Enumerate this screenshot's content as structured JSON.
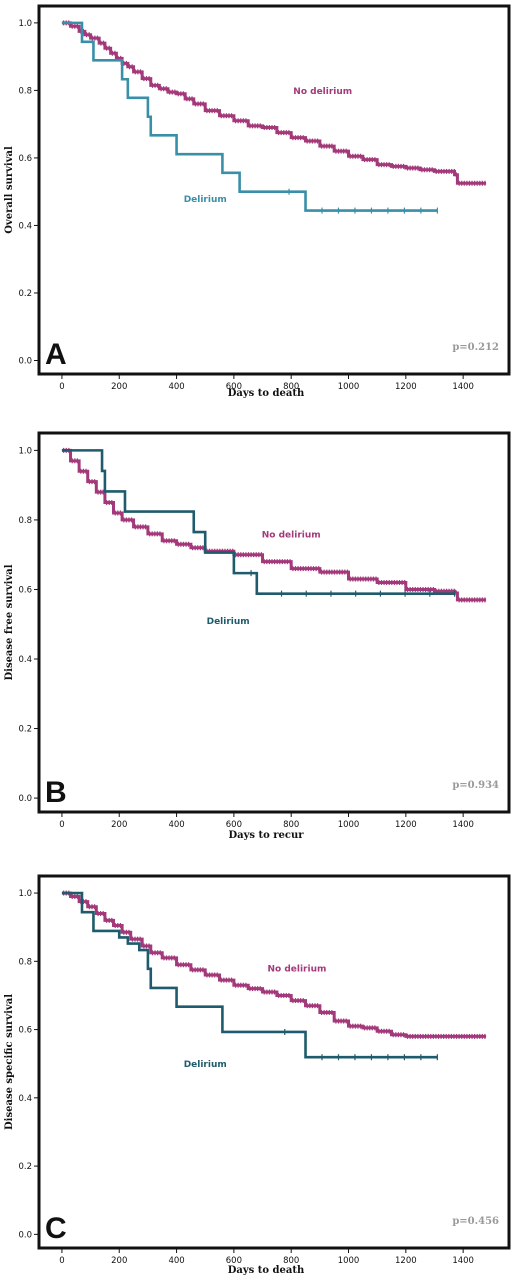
{
  "chart_data": [
    {
      "type": "line",
      "panel_label": "A",
      "xlabel": "Days to death",
      "ylabel": "Overall survival",
      "xlim": [
        -80,
        1560
      ],
      "ylim": [
        -0.04,
        1.05
      ],
      "xticks": [
        0,
        200,
        400,
        600,
        800,
        1000,
        1200,
        1400
      ],
      "yticks": [
        "0.0",
        "0.2",
        "0.4",
        "0.6",
        "0.8",
        "1.0"
      ],
      "p_value": "p=0.212",
      "series": [
        {
          "name": "No delirium",
          "color": "#a3397a",
          "x": [
            0,
            30,
            60,
            80,
            100,
            130,
            150,
            170,
            190,
            210,
            230,
            250,
            280,
            310,
            340,
            370,
            400,
            430,
            460,
            500,
            550,
            600,
            650,
            700,
            750,
            800,
            850,
            900,
            950,
            1000,
            1050,
            1100,
            1150,
            1200,
            1250,
            1300,
            1370,
            1380,
            1480
          ],
          "y": [
            1.0,
            0.99,
            0.975,
            0.965,
            0.955,
            0.94,
            0.925,
            0.91,
            0.895,
            0.88,
            0.87,
            0.855,
            0.835,
            0.815,
            0.805,
            0.795,
            0.79,
            0.775,
            0.76,
            0.74,
            0.725,
            0.71,
            0.695,
            0.69,
            0.675,
            0.66,
            0.65,
            0.635,
            0.62,
            0.605,
            0.595,
            0.58,
            0.575,
            0.57,
            0.565,
            0.56,
            0.55,
            0.525,
            0.525
          ],
          "label_at": [
            910,
            0.79
          ]
        },
        {
          "name": "Delirium",
          "color": "#3a8fa8",
          "x": [
            0,
            70,
            110,
            210,
            230,
            300,
            310,
            400,
            560,
            620,
            850,
            1310
          ],
          "y": [
            1.0,
            0.944,
            0.889,
            0.833,
            0.778,
            0.722,
            0.667,
            0.611,
            0.556,
            0.5,
            0.444,
            0.444
          ],
          "label_at": [
            500,
            0.47
          ]
        }
      ]
    },
    {
      "type": "line",
      "panel_label": "B",
      "xlabel": "Days to recur",
      "ylabel": "Disease free survival",
      "xlim": [
        -80,
        1560
      ],
      "ylim": [
        -0.04,
        1.05
      ],
      "xticks": [
        0,
        200,
        400,
        600,
        800,
        1000,
        1200,
        1400
      ],
      "yticks": [
        "0.0",
        "0.2",
        "0.4",
        "0.6",
        "0.8",
        "1.0"
      ],
      "p_value": "p=0.934",
      "series": [
        {
          "name": "No delirium",
          "color": "#a3397a",
          "x": [
            0,
            30,
            60,
            90,
            120,
            150,
            180,
            210,
            250,
            300,
            350,
            400,
            450,
            500,
            600,
            700,
            800,
            900,
            1000,
            1100,
            1200,
            1300,
            1370,
            1380,
            1480
          ],
          "y": [
            1.0,
            0.97,
            0.94,
            0.91,
            0.88,
            0.85,
            0.82,
            0.8,
            0.78,
            0.76,
            0.74,
            0.73,
            0.72,
            0.71,
            0.7,
            0.68,
            0.66,
            0.65,
            0.63,
            0.62,
            0.6,
            0.595,
            0.59,
            0.57,
            0.57
          ],
          "label_at": [
            800,
            0.75
          ]
        },
        {
          "name": "Delirium",
          "color": "#1f5b6c",
          "x": [
            0,
            140,
            150,
            220,
            460,
            500,
            600,
            680,
            1370
          ],
          "y": [
            1.0,
            0.941,
            0.882,
            0.824,
            0.765,
            0.706,
            0.647,
            0.588,
            0.588
          ],
          "label_at": [
            580,
            0.5
          ]
        }
      ]
    },
    {
      "type": "line",
      "panel_label": "C",
      "xlabel": "Days to death",
      "ylabel": "Disease specific survival",
      "xlim": [
        -80,
        1560
      ],
      "ylim": [
        -0.04,
        1.05
      ],
      "xticks": [
        0,
        200,
        400,
        600,
        800,
        1000,
        1200,
        1400
      ],
      "yticks": [
        "0.0",
        "0.2",
        "0.4",
        "0.6",
        "0.8",
        "1.0"
      ],
      "p_value": "p=0.456",
      "series": [
        {
          "name": "No delirium",
          "color": "#a3397a",
          "x": [
            0,
            30,
            60,
            90,
            120,
            150,
            180,
            210,
            240,
            280,
            310,
            350,
            400,
            450,
            500,
            550,
            600,
            650,
            700,
            750,
            800,
            850,
            900,
            950,
            1000,
            1050,
            1100,
            1150,
            1200,
            1480
          ],
          "y": [
            1.0,
            0.99,
            0.975,
            0.96,
            0.94,
            0.92,
            0.905,
            0.885,
            0.865,
            0.845,
            0.825,
            0.81,
            0.79,
            0.775,
            0.76,
            0.745,
            0.73,
            0.72,
            0.71,
            0.7,
            0.685,
            0.67,
            0.65,
            0.625,
            0.61,
            0.605,
            0.595,
            0.585,
            0.58,
            0.58
          ],
          "label_at": [
            820,
            0.77
          ]
        },
        {
          "name": "Delirium",
          "color": "#1f5b6c",
          "x": [
            0,
            70,
            110,
            200,
            230,
            270,
            300,
            310,
            400,
            560,
            850,
            1310
          ],
          "y": [
            1.0,
            0.944,
            0.889,
            0.87,
            0.852,
            0.833,
            0.778,
            0.722,
            0.667,
            0.593,
            0.519,
            0.519
          ],
          "label_at": [
            500,
            0.49
          ]
        }
      ]
    }
  ]
}
